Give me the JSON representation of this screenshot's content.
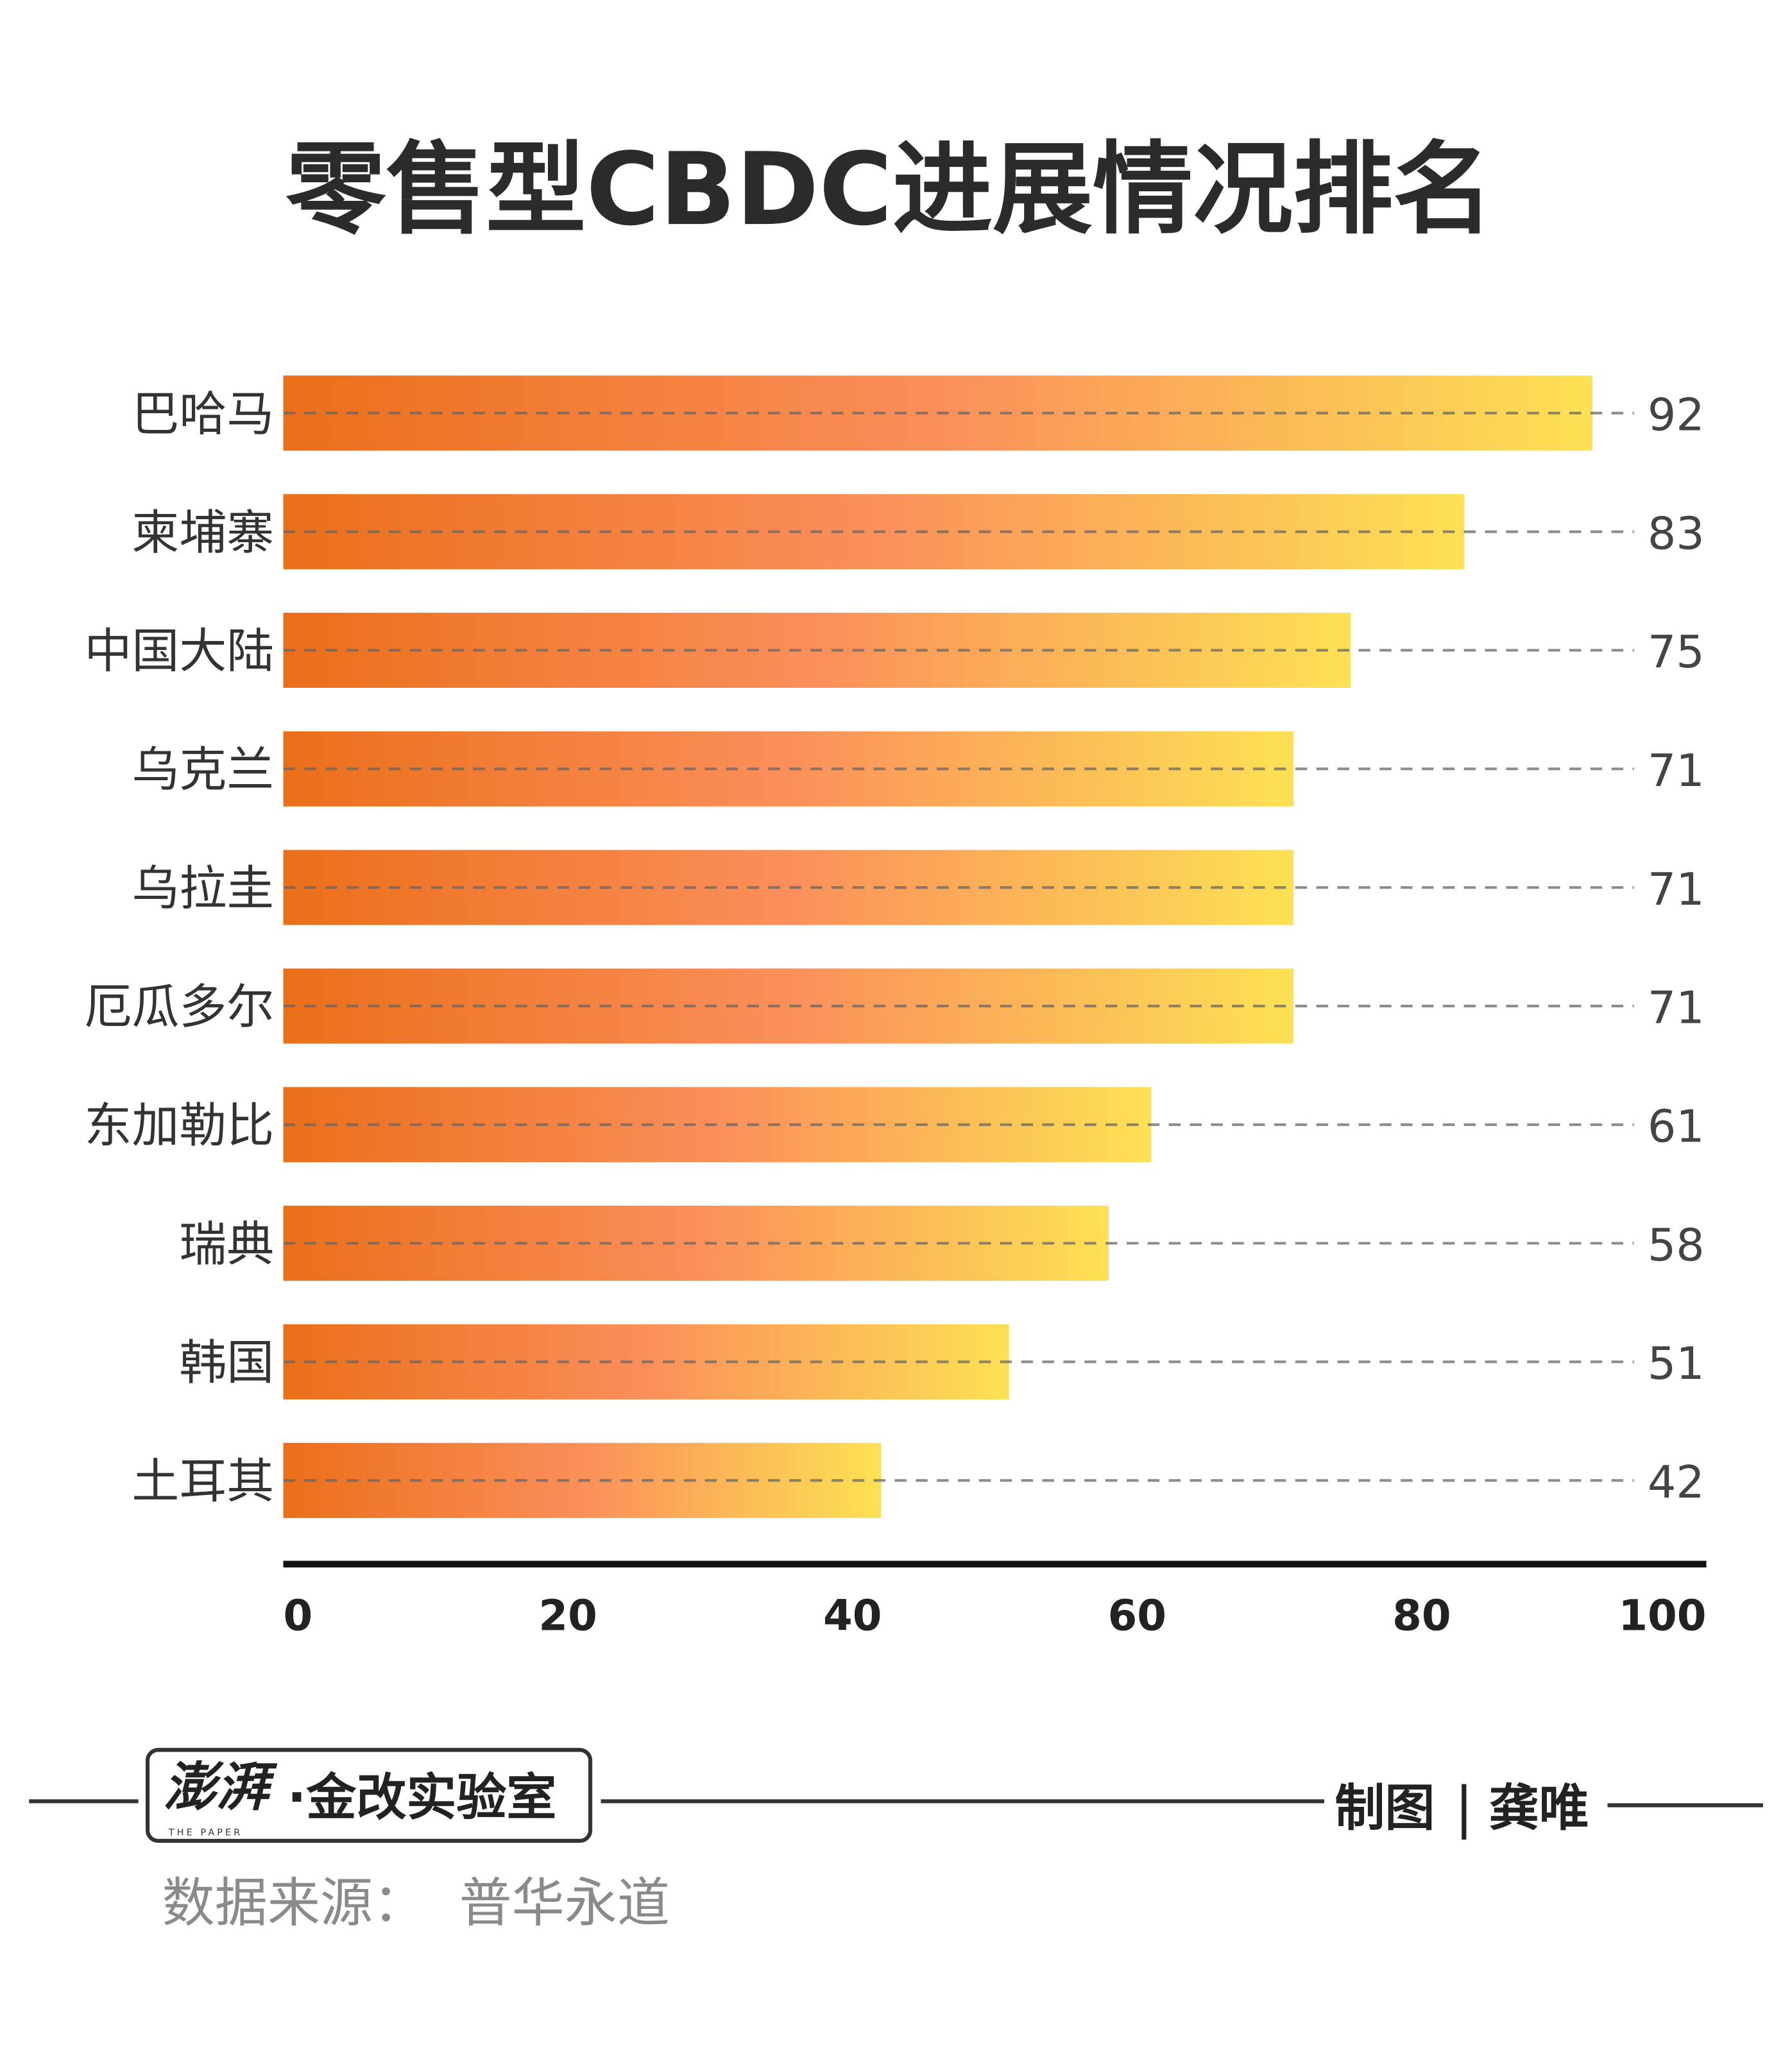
{
  "chart_data": {
    "type": "bar",
    "orientation": "horizontal",
    "title": "零售型CBDC进展情况排名",
    "categories": [
      "巴哈马",
      "柬埔寨",
      "中国大陆",
      "乌克兰",
      "乌拉圭",
      "厄瓜多尔",
      "东加勒比",
      "瑞典",
      "韩国",
      "土耳其"
    ],
    "values": [
      92,
      83,
      75,
      71,
      71,
      71,
      61,
      58,
      51,
      42
    ],
    "xlim": [
      0,
      100
    ],
    "xticks": [
      0,
      20,
      40,
      60,
      80,
      100
    ],
    "grid": false,
    "colors": {
      "gradient_start": "#ea6f1a",
      "gradient_mid": "#fb8f5a",
      "gradient_end": "#fde154",
      "axis": "#111111",
      "leader": "#888888"
    }
  },
  "footer": {
    "logo_name": "澎湃",
    "logo_sub": "THE PAPER",
    "lab": "·金改实验室",
    "credit_label": "制图",
    "credit_sep": "|",
    "credit_name": "龚唯",
    "source": "数据来源：  普华永道"
  }
}
